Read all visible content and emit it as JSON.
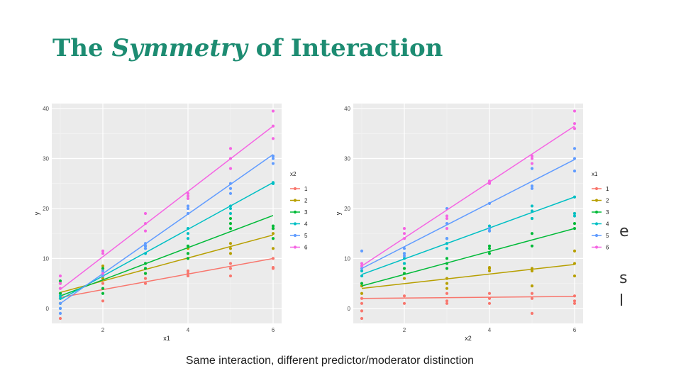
{
  "slide": {
    "title_prefix": "The ",
    "title_emph": "Symmetry",
    "title_suffix": " of Interaction",
    "caption": "Same interaction, different predictor/moderator distinction",
    "side_fragments": [
      "e",
      "s",
      "l"
    ]
  },
  "colors": {
    "title": "#1d8c72",
    "panel_bg": "#ebebeb",
    "series": [
      "#f8766d",
      "#b79f00",
      "#00ba38",
      "#00bfc4",
      "#619cff",
      "#f564e3"
    ]
  },
  "chart_data": [
    {
      "type": "scatter",
      "title": "",
      "xlabel": "x1",
      "ylabel": "y",
      "legend_title": "x2",
      "legend_position": "right",
      "grid": true,
      "xlim": [
        0.8,
        6.2
      ],
      "ylim": [
        -3,
        41
      ],
      "x_ticks": [
        2,
        4,
        6
      ],
      "y_ticks": [
        0,
        10,
        20,
        30,
        40
      ],
      "series": [
        {
          "name": "1",
          "fit": [
            [
              1,
              2.2
            ],
            [
              6,
              10.0
            ]
          ],
          "points": [
            [
              1,
              -2
            ],
            [
              1,
              1
            ],
            [
              1,
              4
            ],
            [
              2,
              1.5
            ],
            [
              2,
              4
            ],
            [
              2,
              5
            ],
            [
              3,
              5
            ],
            [
              3,
              6
            ],
            [
              3,
              7
            ],
            [
              4,
              6.5
            ],
            [
              4,
              7
            ],
            [
              4,
              7.5
            ],
            [
              5,
              6.5
            ],
            [
              5,
              8
            ],
            [
              5,
              9
            ],
            [
              6,
              8
            ],
            [
              6,
              8.2
            ],
            [
              6,
              10
            ]
          ]
        },
        {
          "name": "2",
          "fit": [
            [
              1,
              3.2
            ],
            [
              6,
              14.7
            ]
          ],
          "points": [
            [
              1,
              2
            ],
            [
              1,
              3
            ],
            [
              1,
              5
            ],
            [
              2,
              6
            ],
            [
              2,
              8
            ],
            [
              2,
              8.5
            ],
            [
              3,
              7
            ],
            [
              3,
              8
            ],
            [
              3,
              9
            ],
            [
              4,
              10
            ],
            [
              4,
              11
            ],
            [
              4,
              12
            ],
            [
              5,
              11
            ],
            [
              5,
              12
            ],
            [
              5,
              13
            ],
            [
              6,
              12
            ],
            [
              6,
              15
            ],
            [
              6,
              16
            ]
          ]
        },
        {
          "name": "3",
          "fit": [
            [
              1,
              2.5
            ],
            [
              6,
              18.6
            ]
          ],
          "points": [
            [
              1,
              1
            ],
            [
              1,
              3
            ],
            [
              1,
              5.5
            ],
            [
              2,
              3
            ],
            [
              2,
              4
            ],
            [
              2,
              8
            ],
            [
              3,
              7
            ],
            [
              3,
              8
            ],
            [
              3,
              9
            ],
            [
              4,
              10
            ],
            [
              4,
              11
            ],
            [
              4,
              12.5
            ],
            [
              5,
              16
            ],
            [
              5,
              17
            ],
            [
              5,
              18
            ],
            [
              6,
              14
            ],
            [
              6,
              16
            ],
            [
              6,
              16.5
            ]
          ]
        },
        {
          "name": "4",
          "fit": [
            [
              1,
              1.8
            ],
            [
              6,
              25.2
            ]
          ],
          "points": [
            [
              1,
              0
            ],
            [
              1,
              2
            ],
            [
              1,
              2.5
            ],
            [
              2,
              6.5
            ],
            [
              2,
              7
            ],
            [
              2,
              7.5
            ],
            [
              3,
              11
            ],
            [
              3,
              12
            ],
            [
              3,
              12.5
            ],
            [
              4,
              14
            ],
            [
              4,
              15
            ],
            [
              4,
              16
            ],
            [
              5,
              19
            ],
            [
              5,
              20
            ],
            [
              5,
              20.5
            ],
            [
              6,
              25
            ],
            [
              6,
              25.2
            ],
            [
              6,
              25
            ]
          ]
        },
        {
          "name": "5",
          "fit": [
            [
              1,
              1.0
            ],
            [
              6,
              30.8
            ]
          ],
          "points": [
            [
              1,
              -1
            ],
            [
              1,
              0
            ],
            [
              1,
              1
            ],
            [
              2,
              6.5
            ],
            [
              2,
              7
            ],
            [
              2,
              7.5
            ],
            [
              3,
              12
            ],
            [
              3,
              12.5
            ],
            [
              3,
              13
            ],
            [
              4,
              19
            ],
            [
              4,
              20
            ],
            [
              4,
              20.5
            ],
            [
              5,
              23
            ],
            [
              5,
              24
            ],
            [
              5,
              25
            ],
            [
              6,
              29
            ],
            [
              6,
              30
            ],
            [
              6,
              30.5
            ]
          ]
        },
        {
          "name": "6",
          "fit": [
            [
              1,
              3.8
            ],
            [
              6,
              36.5
            ]
          ],
          "points": [
            [
              1,
              4
            ],
            [
              1,
              5
            ],
            [
              1,
              6.5
            ],
            [
              2,
              7
            ],
            [
              2,
              11
            ],
            [
              2,
              11.5
            ],
            [
              3,
              15.5
            ],
            [
              3,
              17
            ],
            [
              3,
              19
            ],
            [
              4,
              22
            ],
            [
              4,
              22.5
            ],
            [
              4,
              23
            ],
            [
              5,
              28
            ],
            [
              5,
              30
            ],
            [
              5,
              32
            ],
            [
              6,
              34
            ],
            [
              6,
              36.5
            ],
            [
              6,
              39.5
            ]
          ]
        }
      ]
    },
    {
      "type": "scatter",
      "title": "",
      "xlabel": "x2",
      "ylabel": "y",
      "legend_title": "x1",
      "legend_position": "right",
      "grid": true,
      "xlim": [
        0.8,
        6.2
      ],
      "ylim": [
        -3,
        41
      ],
      "x_ticks": [
        2,
        4,
        6
      ],
      "y_ticks": [
        0,
        10,
        20,
        30,
        40
      ],
      "series": [
        {
          "name": "1",
          "fit": [
            [
              1,
              2.0
            ],
            [
              6,
              2.4
            ]
          ],
          "points": [
            [
              1,
              -2
            ],
            [
              1,
              -0.5
            ],
            [
              1,
              1
            ],
            [
              1,
              2
            ],
            [
              2,
              1
            ],
            [
              2,
              2.5
            ],
            [
              3,
              1
            ],
            [
              3,
              1.5
            ],
            [
              3,
              3
            ],
            [
              4,
              1
            ],
            [
              4,
              2
            ],
            [
              4,
              3
            ],
            [
              5,
              -1
            ],
            [
              5,
              2
            ],
            [
              5,
              3
            ],
            [
              6,
              1
            ],
            [
              6,
              1.5
            ],
            [
              6,
              2.5
            ]
          ]
        },
        {
          "name": "2",
          "fit": [
            [
              1,
              4.0
            ],
            [
              6,
              8.8
            ]
          ],
          "points": [
            [
              1,
              3
            ],
            [
              1,
              4.5
            ],
            [
              2,
              6
            ],
            [
              2,
              7
            ],
            [
              2,
              8
            ],
            [
              3,
              4
            ],
            [
              3,
              5
            ],
            [
              3,
              6
            ],
            [
              4,
              7.5
            ],
            [
              4,
              8
            ],
            [
              4,
              8.2
            ],
            [
              5,
              4.5
            ],
            [
              5,
              7.5
            ],
            [
              5,
              8
            ],
            [
              6,
              6.5
            ],
            [
              6,
              9
            ],
            [
              6,
              11.5
            ]
          ]
        },
        {
          "name": "3",
          "fit": [
            [
              1,
              4.5
            ],
            [
              6,
              16.0
            ]
          ],
          "points": [
            [
              1,
              5
            ],
            [
              2,
              7
            ],
            [
              2,
              8
            ],
            [
              2,
              9
            ],
            [
              3,
              8
            ],
            [
              3,
              9
            ],
            [
              3,
              10
            ],
            [
              4,
              11
            ],
            [
              4,
              12
            ],
            [
              4,
              12.5
            ],
            [
              5,
              12.5
            ],
            [
              5,
              15
            ],
            [
              5,
              18
            ],
            [
              6,
              16
            ],
            [
              6,
              17
            ],
            [
              6,
              19
            ]
          ]
        },
        {
          "name": "4",
          "fit": [
            [
              1,
              6.8
            ],
            [
              6,
              22.3
            ]
          ],
          "points": [
            [
              1,
              6.5
            ],
            [
              1,
              7.5
            ],
            [
              2,
              9
            ],
            [
              2,
              10
            ],
            [
              2,
              11
            ],
            [
              3,
              12
            ],
            [
              3,
              13
            ],
            [
              3,
              14
            ],
            [
              4,
              15.5
            ],
            [
              4,
              16
            ],
            [
              4,
              16.5
            ],
            [
              5,
              18
            ],
            [
              5,
              19.5
            ],
            [
              5,
              20.5
            ],
            [
              6,
              18.5
            ],
            [
              6,
              19
            ],
            [
              6,
              22.3
            ]
          ]
        },
        {
          "name": "5",
          "fit": [
            [
              1,
              8.0
            ],
            [
              6,
              29.8
            ]
          ],
          "points": [
            [
              1,
              8
            ],
            [
              1,
              11.5
            ],
            [
              2,
              10.5
            ],
            [
              2,
              11
            ],
            [
              2,
              12
            ],
            [
              3,
              14
            ],
            [
              3,
              17
            ],
            [
              3,
              20
            ],
            [
              4,
              15.5
            ],
            [
              4,
              16
            ],
            [
              4,
              21
            ],
            [
              5,
              24
            ],
            [
              5,
              24.5
            ],
            [
              5,
              28
            ],
            [
              6,
              27.5
            ],
            [
              6,
              30
            ],
            [
              6,
              32
            ]
          ]
        },
        {
          "name": "6",
          "fit": [
            [
              1,
              8.5
            ],
            [
              6,
              36.5
            ]
          ],
          "points": [
            [
              1,
              8.5
            ],
            [
              1,
              9
            ],
            [
              2,
              14
            ],
            [
              2,
              15
            ],
            [
              2,
              16
            ],
            [
              3,
              16
            ],
            [
              3,
              18
            ],
            [
              3,
              18.5
            ],
            [
              4,
              25
            ],
            [
              4,
              25.2
            ],
            [
              4,
              25.5
            ],
            [
              5,
              29
            ],
            [
              5,
              30
            ],
            [
              5,
              30.5
            ],
            [
              6,
              36
            ],
            [
              6,
              37
            ],
            [
              6,
              39.5
            ]
          ]
        }
      ]
    }
  ]
}
